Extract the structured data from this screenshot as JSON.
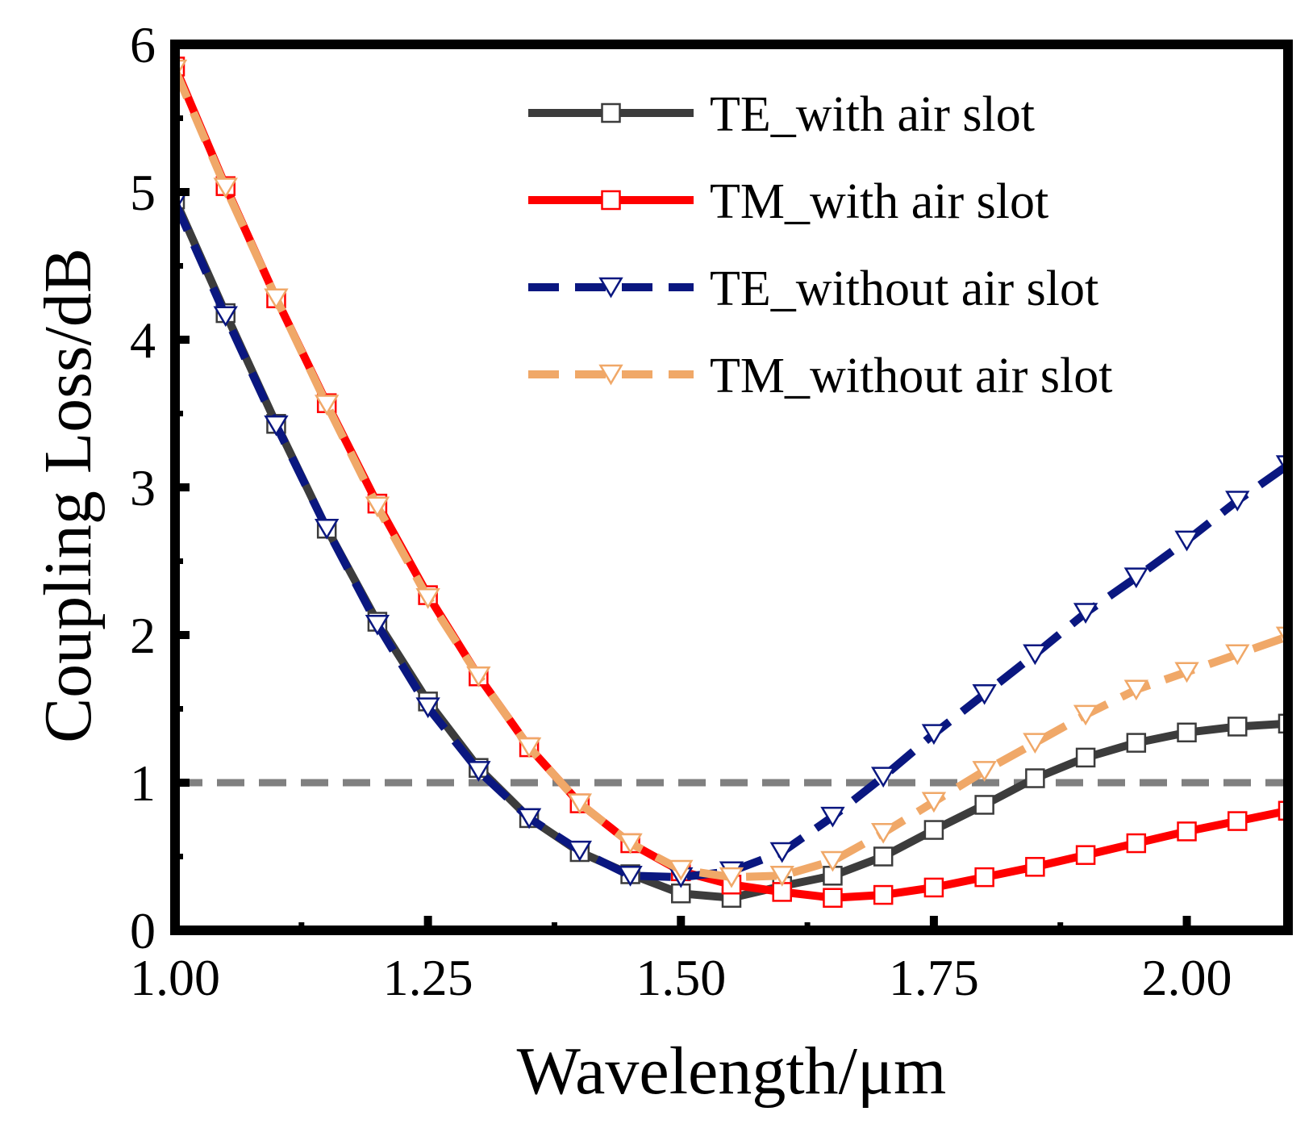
{
  "chart_data": {
    "type": "line",
    "title": "",
    "xlabel": "Wavelength/μm",
    "ylabel": "Coupling Loss/dB",
    "xlim": [
      1.0,
      2.1
    ],
    "ylim": [
      0,
      6
    ],
    "x_ticks": [
      1.0,
      1.25,
      1.5,
      1.75,
      2.0
    ],
    "x_tick_labels": [
      "1.00",
      "1.25",
      "1.50",
      "1.75",
      "2.00"
    ],
    "y_ticks": [
      0,
      1,
      2,
      3,
      4,
      5,
      6
    ],
    "y_tick_labels": [
      "0",
      "1",
      "2",
      "3",
      "4",
      "5",
      "6"
    ],
    "x": [
      1.0,
      1.05,
      1.1,
      1.15,
      1.2,
      1.25,
      1.3,
      1.35,
      1.4,
      1.45,
      1.5,
      1.55,
      1.6,
      1.65,
      1.7,
      1.75,
      1.8,
      1.85,
      1.9,
      1.95,
      2.0,
      2.05,
      2.1
    ],
    "series": [
      {
        "name": "TE_with air slot",
        "color": "#3c3c3c",
        "dash": "solid",
        "marker": "square",
        "values": [
          4.95,
          4.18,
          3.43,
          2.72,
          2.09,
          1.55,
          1.1,
          0.76,
          0.53,
          0.38,
          0.25,
          0.22,
          0.3,
          0.37,
          0.5,
          0.68,
          0.85,
          1.03,
          1.17,
          1.27,
          1.34,
          1.38,
          1.4
        ]
      },
      {
        "name": "TM_with air slot",
        "color": "#ff0000",
        "dash": "solid",
        "marker": "square",
        "values": [
          5.85,
          5.04,
          4.28,
          3.57,
          2.89,
          2.27,
          1.72,
          1.24,
          0.86,
          0.59,
          0.4,
          0.31,
          0.26,
          0.22,
          0.24,
          0.29,
          0.36,
          0.43,
          0.51,
          0.59,
          0.67,
          0.74,
          0.81
        ]
      },
      {
        "name": "TE_without air slot",
        "color": "#0a1780",
        "dash": "dashed",
        "marker": "triangle-down",
        "values": [
          4.93,
          4.16,
          3.42,
          2.72,
          2.07,
          1.51,
          1.08,
          0.76,
          0.54,
          0.37,
          0.36,
          0.4,
          0.53,
          0.77,
          1.04,
          1.33,
          1.6,
          1.87,
          2.15,
          2.39,
          2.64,
          2.91,
          3.15
        ]
      },
      {
        "name": "TM_without air slot",
        "color": "#f0a868",
        "dash": "dashed",
        "marker": "triangle-down",
        "values": [
          5.83,
          5.03,
          4.28,
          3.56,
          2.87,
          2.25,
          1.72,
          1.24,
          0.86,
          0.59,
          0.41,
          0.36,
          0.37,
          0.47,
          0.66,
          0.87,
          1.08,
          1.27,
          1.46,
          1.63,
          1.75,
          1.87,
          1.99
        ]
      }
    ],
    "reference_line": {
      "y": 1.0,
      "color": "#808080",
      "dash": "dashed"
    },
    "legend_position": "top-right",
    "grid": false
  }
}
